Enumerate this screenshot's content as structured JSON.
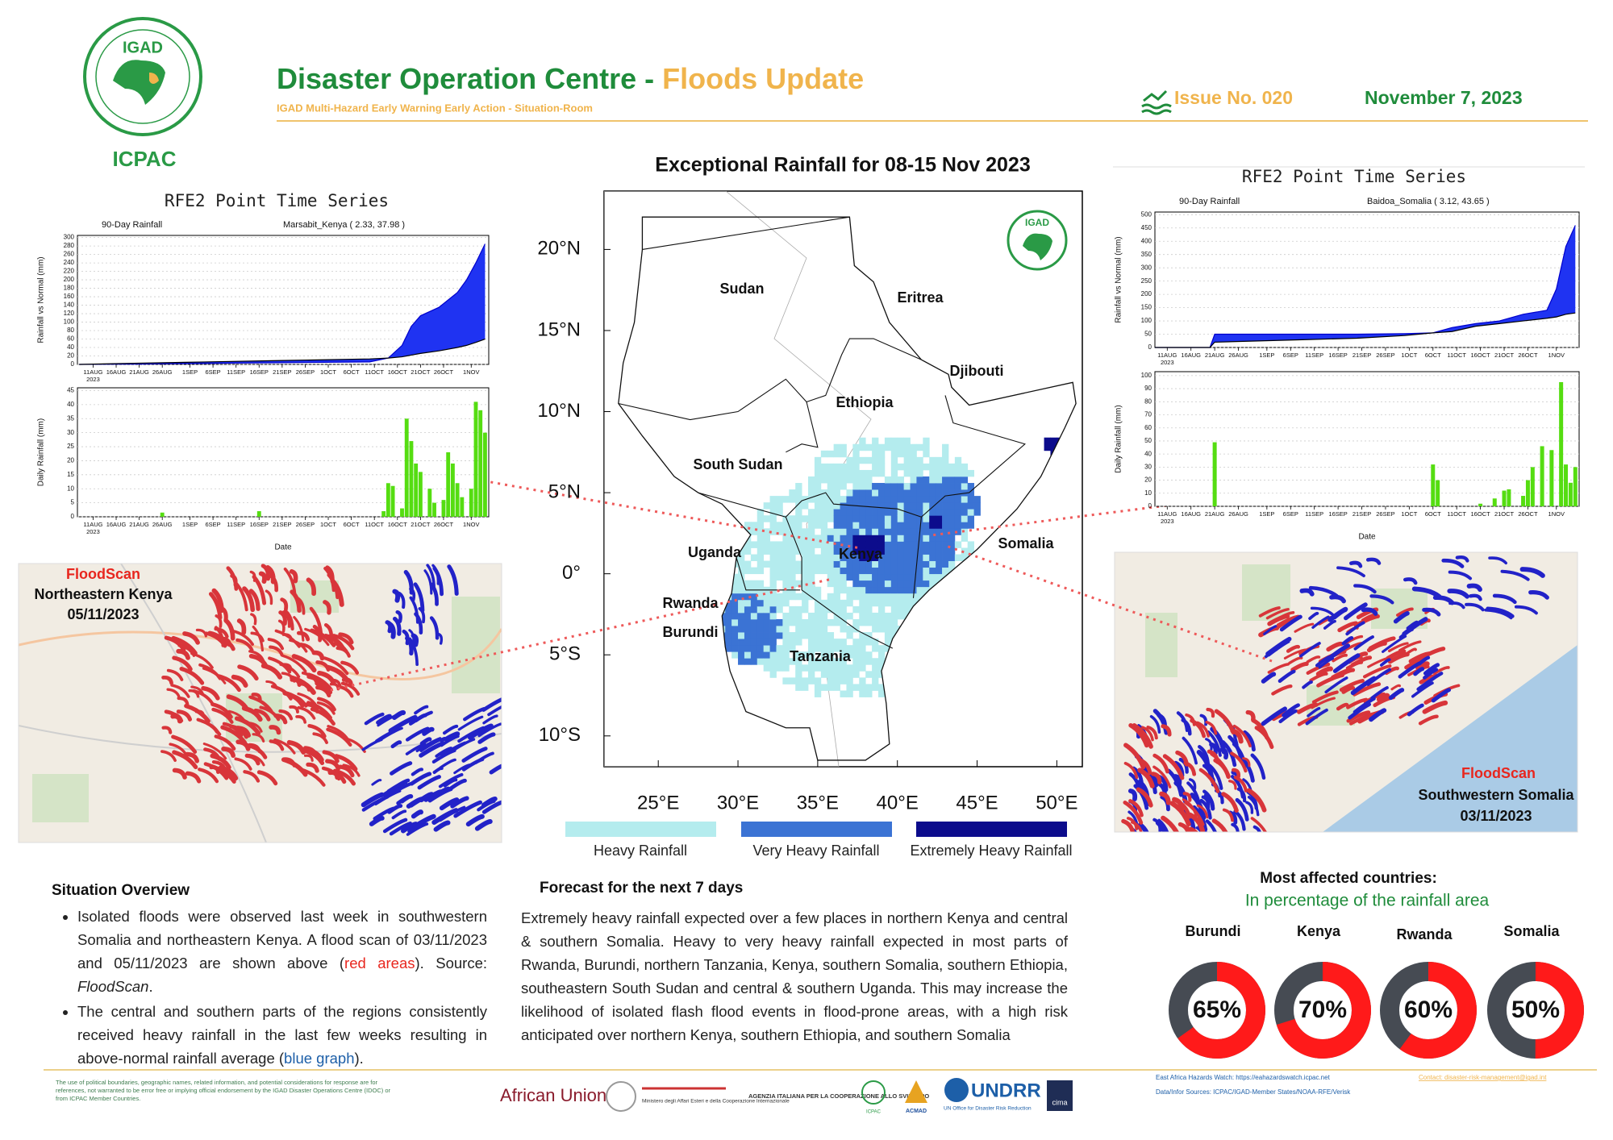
{
  "header": {
    "org_top": "IGAD",
    "org_bottom": "ICPAC",
    "title": "Disaster Operation Centre - ",
    "title_highlight": "Floods Update",
    "subtitle": "IGAD Multi-Hazard Early Warning Early Action - Situation-Room",
    "issue": "Issue No. 020",
    "date": "November 7, 2023"
  },
  "left_panel": {
    "title": "RFE2 Point Time Series",
    "map_source": "FloodScan",
    "map_region": "Northeastern Kenya",
    "map_date": "05/11/2023"
  },
  "right_panel": {
    "title": "RFE2 Point Time Series",
    "map_source": "FloodScan",
    "map_region": "Southwestern Somalia",
    "map_date": "03/11/2023"
  },
  "map": {
    "title": "Exceptional Rainfall for 08-15 Nov 2023",
    "logo": "IGAD",
    "xlim": [
      21.6,
      51.6
    ],
    "ylim": [
      -11.9,
      23.6
    ],
    "xticks": [
      {
        "value": 25,
        "label": "25°E"
      },
      {
        "value": 30,
        "label": "30°E"
      },
      {
        "value": 35,
        "label": "35°E"
      },
      {
        "value": 40,
        "label": "40°E"
      },
      {
        "value": 45,
        "label": "45°E"
      },
      {
        "value": 50,
        "label": "50°E"
      }
    ],
    "yticks": [
      {
        "value": 20,
        "label": "20°N"
      },
      {
        "value": 15,
        "label": "15°N"
      },
      {
        "value": 10,
        "label": "10°N"
      },
      {
        "value": 5,
        "label": "5°N"
      },
      {
        "value": 0,
        "label": "0°"
      },
      {
        "value": -5,
        "label": "5°S"
      },
      {
        "value": -10,
        "label": "10°S"
      }
    ],
    "countries": [
      "Sudan",
      "Eritrea",
      "Djibouti",
      "Ethiopia",
      "South Sudan",
      "Somalia",
      "Uganda",
      "Kenya",
      "Rwanda",
      "Burundi",
      "Tanzania"
    ],
    "legend": [
      {
        "name": "Heavy Rainfall",
        "color": "#b4ecee"
      },
      {
        "name": "Very Heavy Rainfall",
        "color": "#3b73d4"
      },
      {
        "name": "Extremely Heavy Rainfall",
        "color": "#0c0c8c"
      }
    ]
  },
  "situation": {
    "heading": "Situation Overview",
    "items": [
      {
        "text": "Isolated floods were observed last week in southwestern Somalia and northeastern Kenya. A flood scan of 03/11/2023 and 05/11/2023 are shown above (",
        "highlight": "red areas",
        "after": "). Source: ",
        "source": "FloodScan",
        "end": "."
      },
      {
        "text": "The central and southern parts of the regions consistently received heavy rainfall in the last few weeks resulting in above-normal rainfall average (",
        "highlight": "blue graph",
        "end": ")."
      }
    ]
  },
  "forecast": {
    "heading": "Forecast for the next 7 days",
    "text": "Extremely heavy rainfall expected over a few places in northern Kenya and central & southern Somalia. Heavy to very heavy rainfall expected in most parts of Rwanda, Burundi, northern Tanzania, Kenya, southern Somalia, southern Ethiopia, southeastern South Sudan and central & southern Uganda. This may increase the likelihood of isolated flash flood events in flood-prone areas, with a high risk anticipated over northern Kenya, southern Ethiopia, and southern Somalia"
  },
  "footer": {
    "disclaimer": "The use of political boundaries, geographic names, related information, and potential considerations for response are for references, not warranted to be error free or implying official endorsement by the IGAD Disaster Operations Centre (IDOC) or from ICPAC Member Countries.",
    "logos": [
      "African Union",
      "Ministero degli Affari Esteri e della Cooperazione Internazionale",
      "AGENZIA ITALIANA PER LA COOPERAZIONE ALLO SVILUPPO",
      "ICPAC",
      "ACMAD",
      "UNDRR",
      "UN Office for Disaster Risk Reduction",
      "cima"
    ],
    "watch": "East Africa Hazards Watch: https://eahazardswatch.icpac.net",
    "contact": "Contact: disaster-risk-management@igad.int",
    "sources": "Data/Infor Sources: ICPAC/IGAD-Member States/NOAA-RFE/Verisk"
  },
  "chart_data": [
    {
      "type": "area",
      "subtitle": "90-Day Rainfall",
      "station": "Marsabit_Kenya ( 2.33, 37.98 )",
      "ylabel": "Rainfall vs Normal (mm)",
      "year": "2023",
      "xlim": [
        -3.4,
        85.8
      ],
      "ylim": [
        0,
        305
      ],
      "yticks": [
        0,
        20,
        40,
        60,
        80,
        100,
        120,
        140,
        160,
        180,
        200,
        220,
        240,
        260,
        280,
        300
      ],
      "xticks": [
        {
          "value": 0,
          "label": "11AUG"
        },
        {
          "value": 5,
          "label": "16AUG"
        },
        {
          "value": 10,
          "label": "21AUG"
        },
        {
          "value": 15,
          "label": "26AUG"
        },
        {
          "value": 21,
          "label": "1SEP"
        },
        {
          "value": 26,
          "label": "6SEP"
        },
        {
          "value": 31,
          "label": "11SEP"
        },
        {
          "value": 36,
          "label": "16SEP"
        },
        {
          "value": 41,
          "label": "21SEP"
        },
        {
          "value": 46,
          "label": "26SEP"
        },
        {
          "value": 51,
          "label": "1OCT"
        },
        {
          "value": 56,
          "label": "6OCT"
        },
        {
          "value": 61,
          "label": "11OCT"
        },
        {
          "value": 66,
          "label": "16OCT"
        },
        {
          "value": 71,
          "label": "21OCT"
        },
        {
          "value": 76,
          "label": "26OCT"
        },
        {
          "value": 82,
          "label": "1NOV"
        }
      ],
      "x": [
        -3,
        10,
        20,
        30,
        40,
        50,
        60,
        64,
        67,
        69,
        71,
        75,
        79,
        81,
        83,
        85
      ],
      "series": [
        {
          "color": "#0000cc",
          "values": [
            0,
            1,
            2,
            3,
            4,
            5,
            6,
            15,
            45,
            90,
            115,
            135,
            170,
            200,
            240,
            285
          ]
        },
        {
          "color": "#000000",
          "values": [
            0,
            3,
            5,
            7,
            9,
            11,
            13,
            15,
            18,
            22,
            26,
            32,
            40,
            45,
            52,
            60
          ]
        }
      ],
      "fill": "#1f33f2"
    },
    {
      "type": "bar",
      "ylabel": "Daily Rainfall (mm)",
      "xlabel": "Date",
      "year": "2023",
      "xlim": [
        -3.4,
        85.8
      ],
      "ylim": [
        0,
        46
      ],
      "yticks": [
        0,
        5,
        10,
        15,
        20,
        25,
        30,
        35,
        40,
        45
      ],
      "xticks": [
        {
          "value": 0,
          "label": "11AUG"
        },
        {
          "value": 5,
          "label": "16AUG"
        },
        {
          "value": 10,
          "label": "21AUG"
        },
        {
          "value": 15,
          "label": "26AUG"
        },
        {
          "value": 21,
          "label": "1SEP"
        },
        {
          "value": 26,
          "label": "6SEP"
        },
        {
          "value": 31,
          "label": "11SEP"
        },
        {
          "value": 36,
          "label": "16SEP"
        },
        {
          "value": 41,
          "label": "21SEP"
        },
        {
          "value": 46,
          "label": "26SEP"
        },
        {
          "value": 51,
          "label": "1OCT"
        },
        {
          "value": 56,
          "label": "6OCT"
        },
        {
          "value": 61,
          "label": "11OCT"
        },
        {
          "value": 66,
          "label": "16OCT"
        },
        {
          "value": 71,
          "label": "21OCT"
        },
        {
          "value": 76,
          "label": "26OCT"
        },
        {
          "value": 82,
          "label": "1NOV"
        }
      ],
      "x": [
        15,
        36,
        63,
        64,
        65,
        67,
        68,
        69,
        70,
        71,
        73,
        74,
        76,
        77,
        78,
        79,
        80,
        82,
        83,
        84,
        85
      ],
      "values": [
        1.5,
        2,
        2,
        12,
        11,
        3,
        35,
        27,
        19,
        16,
        10,
        5,
        6,
        23,
        19,
        12,
        7,
        10,
        41,
        38,
        30
      ],
      "color": "#55dd11"
    },
    {
      "type": "area",
      "subtitle": "90-Day Rainfall",
      "station": "Baidoa_Somalia ( 3.12, 43.65 )",
      "ylabel": "Rainfall vs Normal (mm)",
      "year": "2023",
      "xlim": [
        -2.6,
        86.8
      ],
      "ylim": [
        0,
        510
      ],
      "yticks": [
        0,
        50,
        100,
        150,
        200,
        250,
        300,
        350,
        400,
        450,
        500
      ],
      "xticks": [
        {
          "value": 0,
          "label": "11AUG"
        },
        {
          "value": 5,
          "label": "16AUG"
        },
        {
          "value": 10,
          "label": "21AUG"
        },
        {
          "value": 15,
          "label": "26AUG"
        },
        {
          "value": 21,
          "label": "1SEP"
        },
        {
          "value": 26,
          "label": "6SEP"
        },
        {
          "value": 31,
          "label": "11SEP"
        },
        {
          "value": 36,
          "label": "16SEP"
        },
        {
          "value": 41,
          "label": "21SEP"
        },
        {
          "value": 46,
          "label": "26SEP"
        },
        {
          "value": 51,
          "label": "1OCT"
        },
        {
          "value": 56,
          "label": "6OCT"
        },
        {
          "value": 61,
          "label": "11OCT"
        },
        {
          "value": 66,
          "label": "16OCT"
        },
        {
          "value": 71,
          "label": "21OCT"
        },
        {
          "value": 76,
          "label": "26OCT"
        },
        {
          "value": 82,
          "label": "1NOV"
        }
      ],
      "x": [
        -2.6,
        9,
        10,
        20,
        30,
        40,
        50,
        56,
        60,
        65,
        70,
        75,
        80,
        82,
        84,
        86
      ],
      "series": [
        {
          "color": "#0000cc",
          "values": [
            0,
            0,
            50,
            50,
            50,
            50,
            52,
            55,
            75,
            90,
            100,
            125,
            140,
            220,
            380,
            460
          ]
        },
        {
          "color": "#000000",
          "values": [
            0,
            0,
            20,
            25,
            30,
            35,
            45,
            55,
            60,
            80,
            90,
            100,
            110,
            115,
            125,
            130
          ]
        }
      ],
      "fill": "#1f33f2"
    },
    {
      "type": "bar",
      "ylabel": "Daily Rainfall (mm)",
      "xlabel": "Date",
      "year": "2023",
      "xlim": [
        -2.6,
        86.8
      ],
      "ylim": [
        0,
        103
      ],
      "yticks": [
        0,
        10,
        20,
        30,
        40,
        50,
        60,
        70,
        80,
        90,
        100
      ],
      "xticks": [
        {
          "value": 0,
          "label": "11AUG"
        },
        {
          "value": 5,
          "label": "16AUG"
        },
        {
          "value": 10,
          "label": "21AUG"
        },
        {
          "value": 15,
          "label": "26AUG"
        },
        {
          "value": 21,
          "label": "1SEP"
        },
        {
          "value": 26,
          "label": "6SEP"
        },
        {
          "value": 31,
          "label": "11SEP"
        },
        {
          "value": 36,
          "label": "16SEP"
        },
        {
          "value": 41,
          "label": "21SEP"
        },
        {
          "value": 46,
          "label": "26SEP"
        },
        {
          "value": 51,
          "label": "1OCT"
        },
        {
          "value": 56,
          "label": "6OCT"
        },
        {
          "value": 61,
          "label": "11OCT"
        },
        {
          "value": 66,
          "label": "16OCT"
        },
        {
          "value": 71,
          "label": "21OCT"
        },
        {
          "value": 76,
          "label": "26OCT"
        },
        {
          "value": 82,
          "label": "1NOV"
        }
      ],
      "x": [
        10,
        56,
        57,
        66,
        69,
        71,
        72,
        75,
        76,
        77,
        79,
        81,
        83,
        84,
        85,
        86
      ],
      "values": [
        49,
        32,
        20,
        2,
        6,
        12,
        13,
        8,
        20,
        30,
        46,
        43,
        95,
        32,
        18,
        30
      ],
      "color": "#55dd11"
    },
    {
      "type": "donut",
      "title": "Most affected countries:",
      "subtitle": "In percentage of the rainfall area",
      "categories": [
        "Burundi",
        "Kenya",
        "Rwanda",
        "Somalia"
      ],
      "values": [
        65,
        70,
        60,
        50
      ],
      "value_labels": [
        "65%",
        "70%",
        "60%",
        "50%"
      ],
      "ylim": [
        0,
        100
      ],
      "color": "#ff1a1a",
      "track_color": "#464b53"
    }
  ]
}
